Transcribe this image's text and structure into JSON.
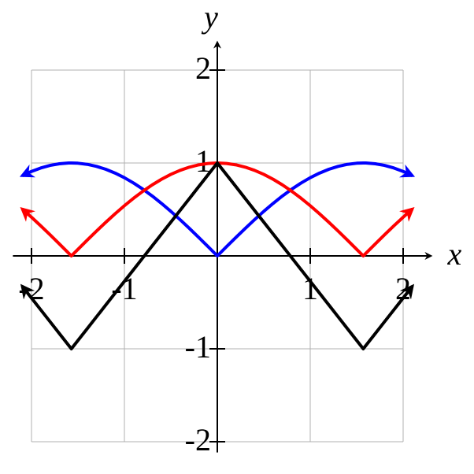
{
  "chart_data": {
    "type": "line",
    "x_label": "x",
    "y_label": "y",
    "x": [
      -2.1,
      -2.0,
      -1.9,
      -1.8,
      -1.7,
      -1.6,
      -1.5708,
      -1.5,
      -1.4,
      -1.3,
      -1.2,
      -1.1,
      -1.0,
      -0.9,
      -0.8,
      -0.7,
      -0.6,
      -0.5,
      -0.4,
      -0.3,
      -0.2,
      -0.1,
      0,
      0.1,
      0.2,
      0.3,
      0.4,
      0.5,
      0.6,
      0.7,
      0.8,
      0.9,
      1.0,
      1.1,
      1.2,
      1.3,
      1.4,
      1.5,
      1.5708,
      1.6,
      1.7,
      1.8,
      1.9,
      2.0,
      2.1
    ],
    "series": [
      {
        "color": "#0000ff",
        "values": [
          0.8632,
          0.9093,
          0.9463,
          0.9738,
          0.9917,
          0.9996,
          1,
          0.9975,
          0.9854,
          0.9636,
          0.932,
          0.8912,
          0.8415,
          0.7833,
          0.7174,
          0.6442,
          0.5646,
          0.4794,
          0.3894,
          0.2955,
          0.1987,
          0.0998,
          0,
          0.0998,
          0.1987,
          0.2955,
          0.3894,
          0.4794,
          0.5646,
          0.6442,
          0.7174,
          0.7833,
          0.8415,
          0.8912,
          0.932,
          0.9636,
          0.9854,
          0.9975,
          1,
          0.9996,
          0.9917,
          0.9738,
          0.9463,
          0.9093,
          0.8632
        ]
      },
      {
        "color": "#ff0000",
        "values": [
          0.5048,
          0.4161,
          0.3233,
          0.2272,
          0.1288,
          0.0292,
          0,
          0.0707,
          0.17,
          0.2675,
          0.3624,
          0.4536,
          0.5403,
          0.6216,
          0.6967,
          0.7648,
          0.8253,
          0.8776,
          0.9211,
          0.9553,
          0.9801,
          0.995,
          1,
          0.995,
          0.9801,
          0.9553,
          0.9211,
          0.8776,
          0.8253,
          0.7648,
          0.6967,
          0.6216,
          0.5403,
          0.4536,
          0.3624,
          0.2675,
          0.17,
          0.0707,
          0,
          0.0292,
          0.1288,
          0.2272,
          0.3233,
          0.4161,
          0.5048
        ]
      },
      {
        "color": "#000000",
        "values": [
          -0.3262,
          -0.4535,
          -0.5809,
          -0.7082,
          -0.8355,
          -0.9628,
          -1,
          -0.9099,
          -0.7825,
          -0.6552,
          -0.5279,
          -0.4006,
          -0.2732,
          -0.1459,
          -0.0186,
          0.1087,
          0.2361,
          0.3634,
          0.4907,
          0.618,
          0.7454,
          0.8727,
          1,
          0.8727,
          0.7454,
          0.618,
          0.4907,
          0.3634,
          0.2361,
          0.1087,
          -0.0186,
          -0.1459,
          -0.2732,
          -0.4006,
          -0.5279,
          -0.6552,
          -0.7825,
          -0.9099,
          -1,
          -0.9628,
          -0.8355,
          -0.7082,
          -0.5809,
          -0.4535,
          -0.3262
        ]
      }
    ],
    "xlim": [
      -2.2,
      2.3
    ],
    "ylim": [
      -2.2,
      2.3
    ],
    "xticks": [
      -2,
      -1,
      1,
      2
    ],
    "yticks": [
      -2,
      -1,
      1,
      2
    ],
    "grid": true
  }
}
